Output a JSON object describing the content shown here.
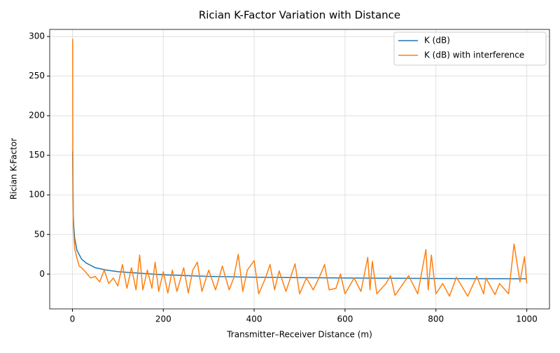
{
  "chart_data": {
    "type": "line",
    "title": "Rician K-Factor Variation with Distance",
    "x_label": "Transmitter–Receiver Distance (m)",
    "y_label": "Rician K-Factor",
    "xlim": [
      -50,
      1050
    ],
    "ylim": [
      -44,
      309
    ],
    "xticks": [
      0,
      200,
      400,
      600,
      800,
      1000
    ],
    "yticks": [
      0,
      50,
      100,
      150,
      200,
      250,
      300
    ],
    "grid": true,
    "legend": "upper right",
    "series": [
      {
        "name": "K (dB)",
        "color": "#1f77b4",
        "x": [
          0.5,
          1,
          2,
          3,
          5,
          10,
          20,
          30,
          50,
          75,
          100,
          150,
          200,
          300,
          400,
          500,
          600,
          700,
          800,
          900,
          1000
        ],
        "values": [
          155,
          120,
          75,
          60,
          45,
          30,
          19,
          14,
          8,
          5,
          3,
          1,
          -1,
          -3,
          -4,
          -4.5,
          -5,
          -5.3,
          -5.6,
          -5.8,
          -6
        ]
      },
      {
        "name": "K (dB) with interference",
        "color": "#ff7f0e",
        "x": [
          0.5,
          1,
          2,
          5,
          10,
          15,
          20,
          30,
          40,
          50,
          60,
          70,
          80,
          90,
          100,
          110,
          120,
          130,
          140,
          148,
          155,
          165,
          175,
          182,
          190,
          200,
          210,
          220,
          230,
          245,
          255,
          265,
          275,
          285,
          300,
          315,
          330,
          345,
          355,
          365,
          375,
          385,
          400,
          410,
          425,
          435,
          445,
          455,
          470,
          490,
          500,
          515,
          530,
          545,
          555,
          565,
          580,
          590,
          600,
          620,
          635,
          650,
          655,
          660,
          670,
          690,
          700,
          710,
          740,
          760,
          778,
          783,
          790,
          800,
          815,
          830,
          845,
          870,
          890,
          905,
          910,
          930,
          940,
          960,
          972,
          985,
          995,
          1000
        ],
        "values": [
          297,
          150,
          60,
          32,
          20,
          10,
          8,
          2,
          -5,
          -3,
          -10,
          5,
          -12,
          -5,
          -15,
          12,
          -18,
          8,
          -20,
          24,
          -20,
          5,
          -18,
          15,
          -22,
          3,
          -24,
          5,
          -22,
          8,
          -24,
          5,
          15,
          -22,
          5,
          -20,
          10,
          -20,
          -5,
          25,
          -22,
          5,
          17,
          -25,
          -5,
          12,
          -20,
          4,
          -22,
          13,
          -25,
          -5,
          -20,
          -2,
          12,
          -20,
          -18,
          0,
          -25,
          -5,
          -22,
          21,
          -20,
          16,
          -25,
          -12,
          -2,
          -27,
          -2,
          -25,
          31,
          -20,
          24,
          -25,
          -12,
          -28,
          -4,
          -28,
          -3,
          -25,
          -5,
          -26,
          -12,
          -25,
          38,
          -10,
          22,
          -12
        ]
      }
    ]
  }
}
